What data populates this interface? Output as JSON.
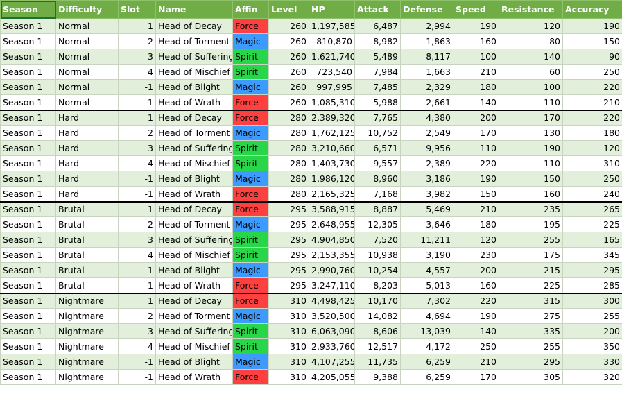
{
  "headers": [
    "Season",
    "Difficulty",
    "Slot",
    "Name",
    "Affin",
    "Level",
    "HP",
    "Attack",
    "Defense",
    "Speed",
    "Resistance",
    "Accuracy"
  ],
  "affinity_colors": {
    "Force": "#ff4040",
    "Magic": "#3d9bff",
    "Spirit": "#29d64a"
  },
  "header_color": "#70ad47",
  "band_color": "#e2efda",
  "rows": [
    {
      "season": "Season 1",
      "difficulty": "Normal",
      "slot": "1",
      "name": "Head of Decay",
      "affin": "Force",
      "level": "260",
      "hp": "1,197,585",
      "attack": "6,487",
      "defense": "2,994",
      "speed": "190",
      "resistance": "120",
      "accuracy": "190"
    },
    {
      "season": "Season 1",
      "difficulty": "Normal",
      "slot": "2",
      "name": "Head of Torment",
      "affin": "Magic",
      "level": "260",
      "hp": "810,870",
      "attack": "8,982",
      "defense": "1,863",
      "speed": "160",
      "resistance": "80",
      "accuracy": "150"
    },
    {
      "season": "Season 1",
      "difficulty": "Normal",
      "slot": "3",
      "name": "Head of Suffering",
      "affin": "Spirit",
      "level": "260",
      "hp": "1,621,740",
      "attack": "5,489",
      "defense": "8,117",
      "speed": "100",
      "resistance": "140",
      "accuracy": "90"
    },
    {
      "season": "Season 1",
      "difficulty": "Normal",
      "slot": "4",
      "name": "Head of Mischief",
      "affin": "Spirit",
      "level": "260",
      "hp": "723,540",
      "attack": "7,984",
      "defense": "1,663",
      "speed": "210",
      "resistance": "60",
      "accuracy": "250"
    },
    {
      "season": "Season 1",
      "difficulty": "Normal",
      "slot": "-1",
      "name": "Head of Blight",
      "affin": "Magic",
      "level": "260",
      "hp": "997,995",
      "attack": "7,485",
      "defense": "2,329",
      "speed": "180",
      "resistance": "100",
      "accuracy": "220"
    },
    {
      "season": "Season 1",
      "difficulty": "Normal",
      "slot": "-1",
      "name": "Head of Wrath",
      "affin": "Force",
      "level": "260",
      "hp": "1,085,310",
      "attack": "5,988",
      "defense": "2,661",
      "speed": "140",
      "resistance": "110",
      "accuracy": "210"
    },
    {
      "season": "Season 1",
      "difficulty": "Hard",
      "slot": "1",
      "name": "Head of Decay",
      "affin": "Force",
      "level": "280",
      "hp": "2,389,320",
      "attack": "7,765",
      "defense": "4,380",
      "speed": "200",
      "resistance": "170",
      "accuracy": "220"
    },
    {
      "season": "Season 1",
      "difficulty": "Hard",
      "slot": "2",
      "name": "Head of Torment",
      "affin": "Magic",
      "level": "280",
      "hp": "1,762,125",
      "attack": "10,752",
      "defense": "2,549",
      "speed": "170",
      "resistance": "130",
      "accuracy": "180"
    },
    {
      "season": "Season 1",
      "difficulty": "Hard",
      "slot": "3",
      "name": "Head of Suffering",
      "affin": "Spirit",
      "level": "280",
      "hp": "3,210,660",
      "attack": "6,571",
      "defense": "9,956",
      "speed": "110",
      "resistance": "190",
      "accuracy": "120"
    },
    {
      "season": "Season 1",
      "difficulty": "Hard",
      "slot": "4",
      "name": "Head of Mischief",
      "affin": "Spirit",
      "level": "280",
      "hp": "1,403,730",
      "attack": "9,557",
      "defense": "2,389",
      "speed": "220",
      "resistance": "110",
      "accuracy": "310"
    },
    {
      "season": "Season 1",
      "difficulty": "Hard",
      "slot": "-1",
      "name": "Head of Blight",
      "affin": "Magic",
      "level": "280",
      "hp": "1,986,120",
      "attack": "8,960",
      "defense": "3,186",
      "speed": "190",
      "resistance": "150",
      "accuracy": "250"
    },
    {
      "season": "Season 1",
      "difficulty": "Hard",
      "slot": "-1",
      "name": "Head of Wrath",
      "affin": "Force",
      "level": "280",
      "hp": "2,165,325",
      "attack": "7,168",
      "defense": "3,982",
      "speed": "150",
      "resistance": "160",
      "accuracy": "240"
    },
    {
      "season": "Season 1",
      "difficulty": "Brutal",
      "slot": "1",
      "name": "Head of Decay",
      "affin": "Force",
      "level": "295",
      "hp": "3,588,915",
      "attack": "8,887",
      "defense": "5,469",
      "speed": "210",
      "resistance": "235",
      "accuracy": "265"
    },
    {
      "season": "Season 1",
      "difficulty": "Brutal",
      "slot": "2",
      "name": "Head of Torment",
      "affin": "Magic",
      "level": "295",
      "hp": "2,648,955",
      "attack": "12,305",
      "defense": "3,646",
      "speed": "180",
      "resistance": "195",
      "accuracy": "225"
    },
    {
      "season": "Season 1",
      "difficulty": "Brutal",
      "slot": "3",
      "name": "Head of Suffering",
      "affin": "Spirit",
      "level": "295",
      "hp": "4,904,850",
      "attack": "7,520",
      "defense": "11,211",
      "speed": "120",
      "resistance": "255",
      "accuracy": "165"
    },
    {
      "season": "Season 1",
      "difficulty": "Brutal",
      "slot": "4",
      "name": "Head of Mischief",
      "affin": "Spirit",
      "level": "295",
      "hp": "2,153,355",
      "attack": "10,938",
      "defense": "3,190",
      "speed": "230",
      "resistance": "175",
      "accuracy": "345"
    },
    {
      "season": "Season 1",
      "difficulty": "Brutal",
      "slot": "-1",
      "name": "Head of Blight",
      "affin": "Magic",
      "level": "295",
      "hp": "2,990,760",
      "attack": "10,254",
      "defense": "4,557",
      "speed": "200",
      "resistance": "215",
      "accuracy": "295"
    },
    {
      "season": "Season 1",
      "difficulty": "Brutal",
      "slot": "-1",
      "name": "Head of Wrath",
      "affin": "Force",
      "level": "295",
      "hp": "3,247,110",
      "attack": "8,203",
      "defense": "5,013",
      "speed": "160",
      "resistance": "225",
      "accuracy": "285"
    },
    {
      "season": "Season 1",
      "difficulty": "Nightmare",
      "slot": "1",
      "name": "Head of Decay",
      "affin": "Force",
      "level": "310",
      "hp": "4,498,425",
      "attack": "10,170",
      "defense": "7,302",
      "speed": "220",
      "resistance": "315",
      "accuracy": "300"
    },
    {
      "season": "Season 1",
      "difficulty": "Nightmare",
      "slot": "2",
      "name": "Head of Torment",
      "affin": "Magic",
      "level": "310",
      "hp": "3,520,500",
      "attack": "14,082",
      "defense": "4,694",
      "speed": "190",
      "resistance": "275",
      "accuracy": "255"
    },
    {
      "season": "Season 1",
      "difficulty": "Nightmare",
      "slot": "3",
      "name": "Head of Suffering",
      "affin": "Spirit",
      "level": "310",
      "hp": "6,063,090",
      "attack": "8,606",
      "defense": "13,039",
      "speed": "140",
      "resistance": "335",
      "accuracy": "200"
    },
    {
      "season": "Season 1",
      "difficulty": "Nightmare",
      "slot": "4",
      "name": "Head of Mischief",
      "affin": "Spirit",
      "level": "310",
      "hp": "2,933,760",
      "attack": "12,517",
      "defense": "4,172",
      "speed": "250",
      "resistance": "255",
      "accuracy": "350"
    },
    {
      "season": "Season 1",
      "difficulty": "Nightmare",
      "slot": "-1",
      "name": "Head of Blight",
      "affin": "Magic",
      "level": "310",
      "hp": "4,107,255",
      "attack": "11,735",
      "defense": "6,259",
      "speed": "210",
      "resistance": "295",
      "accuracy": "330"
    },
    {
      "season": "Season 1",
      "difficulty": "Nightmare",
      "slot": "-1",
      "name": "Head of Wrath",
      "affin": "Force",
      "level": "310",
      "hp": "4,205,055",
      "attack": "9,388",
      "defense": "6,259",
      "speed": "170",
      "resistance": "305",
      "accuracy": "320"
    }
  ]
}
